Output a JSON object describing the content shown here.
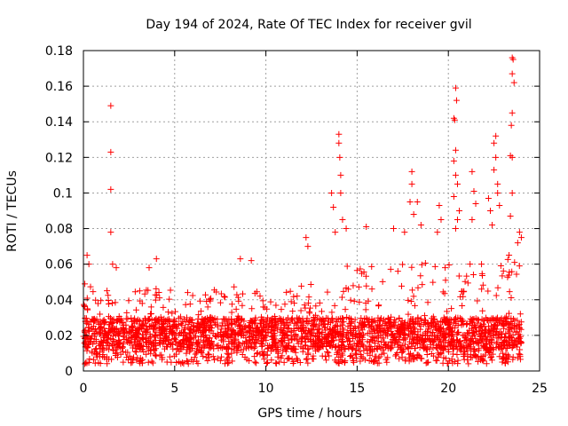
{
  "chart_data": {
    "type": "scatter",
    "title": "Day 194 of 2024, Rate Of TEC Index for receiver gvil",
    "xlabel": "GPS time / hours",
    "ylabel": "ROTI / TECUs",
    "xlim": [
      0,
      25
    ],
    "ylim": [
      0,
      0.18
    ],
    "xticks": [
      0,
      5,
      10,
      15,
      20,
      25
    ],
    "yticks": [
      0,
      0.02,
      0.04,
      0.06,
      0.08,
      0.1,
      0.12,
      0.14,
      0.16,
      0.18
    ],
    "xtick_labels": [
      "0",
      "5",
      "10",
      "15",
      "20",
      "25"
    ],
    "ytick_labels": [
      "0",
      "0.02",
      "0.04",
      "0.06",
      "0.08",
      "0.1",
      "0.12",
      "0.14",
      "0.16",
      "0.18"
    ],
    "grid": true,
    "marker": "+",
    "color": "#ff0000",
    "x_range_data": [
      0,
      24
    ],
    "baseline": {
      "typical_low": 0.012,
      "typical_high": 0.03
    },
    "band_profile": [
      {
        "x": 0,
        "upper": 0.05
      },
      {
        "x": 2,
        "upper": 0.045
      },
      {
        "x": 4,
        "upper": 0.05
      },
      {
        "x": 6,
        "upper": 0.045
      },
      {
        "x": 8,
        "upper": 0.05
      },
      {
        "x": 9,
        "upper": 0.06
      },
      {
        "x": 10,
        "upper": 0.04
      },
      {
        "x": 12,
        "upper": 0.05
      },
      {
        "x": 14,
        "upper": 0.06
      },
      {
        "x": 16,
        "upper": 0.065
      },
      {
        "x": 18,
        "upper": 0.06
      },
      {
        "x": 20,
        "upper": 0.065
      },
      {
        "x": 22,
        "upper": 0.06
      },
      {
        "x": 24,
        "upper": 0.07
      }
    ],
    "outliers": [
      {
        "x": 1.5,
        "y": 0.149
      },
      {
        "x": 1.5,
        "y": 0.123
      },
      {
        "x": 1.5,
        "y": 0.102
      },
      {
        "x": 1.5,
        "y": 0.078
      },
      {
        "x": 1.6,
        "y": 0.06
      },
      {
        "x": 0.2,
        "y": 0.065
      },
      {
        "x": 0.3,
        "y": 0.06
      },
      {
        "x": 1.8,
        "y": 0.058
      },
      {
        "x": 4.0,
        "y": 0.063
      },
      {
        "x": 3.6,
        "y": 0.058
      },
      {
        "x": 8.6,
        "y": 0.063
      },
      {
        "x": 9.2,
        "y": 0.062
      },
      {
        "x": 12.2,
        "y": 0.075
      },
      {
        "x": 12.3,
        "y": 0.07
      },
      {
        "x": 13.6,
        "y": 0.1
      },
      {
        "x": 13.7,
        "y": 0.092
      },
      {
        "x": 13.8,
        "y": 0.078
      },
      {
        "x": 14.0,
        "y": 0.133
      },
      {
        "x": 14.0,
        "y": 0.128
      },
      {
        "x": 14.05,
        "y": 0.12
      },
      {
        "x": 14.1,
        "y": 0.11
      },
      {
        "x": 14.1,
        "y": 0.1
      },
      {
        "x": 14.2,
        "y": 0.085
      },
      {
        "x": 14.4,
        "y": 0.08
      },
      {
        "x": 15.5,
        "y": 0.081
      },
      {
        "x": 17.0,
        "y": 0.08
      },
      {
        "x": 17.6,
        "y": 0.078
      },
      {
        "x": 18.0,
        "y": 0.112
      },
      {
        "x": 18.0,
        "y": 0.105
      },
      {
        "x": 17.9,
        "y": 0.095
      },
      {
        "x": 18.1,
        "y": 0.088
      },
      {
        "x": 18.3,
        "y": 0.095
      },
      {
        "x": 18.5,
        "y": 0.082
      },
      {
        "x": 19.5,
        "y": 0.093
      },
      {
        "x": 19.6,
        "y": 0.085
      },
      {
        "x": 19.4,
        "y": 0.078
      },
      {
        "x": 20.4,
        "y": 0.159
      },
      {
        "x": 20.45,
        "y": 0.152
      },
      {
        "x": 20.3,
        "y": 0.142
      },
      {
        "x": 20.35,
        "y": 0.141
      },
      {
        "x": 20.4,
        "y": 0.124
      },
      {
        "x": 20.3,
        "y": 0.118
      },
      {
        "x": 20.4,
        "y": 0.11
      },
      {
        "x": 20.5,
        "y": 0.105
      },
      {
        "x": 20.3,
        "y": 0.098
      },
      {
        "x": 20.6,
        "y": 0.09
      },
      {
        "x": 20.5,
        "y": 0.085
      },
      {
        "x": 20.4,
        "y": 0.08
      },
      {
        "x": 21.3,
        "y": 0.112
      },
      {
        "x": 21.4,
        "y": 0.101
      },
      {
        "x": 21.5,
        "y": 0.094
      },
      {
        "x": 21.3,
        "y": 0.085
      },
      {
        "x": 22.2,
        "y": 0.097
      },
      {
        "x": 22.3,
        "y": 0.09
      },
      {
        "x": 22.4,
        "y": 0.082
      },
      {
        "x": 22.5,
        "y": 0.113
      },
      {
        "x": 22.6,
        "y": 0.12
      },
      {
        "x": 22.5,
        "y": 0.128
      },
      {
        "x": 22.6,
        "y": 0.132
      },
      {
        "x": 22.7,
        "y": 0.105
      },
      {
        "x": 22.7,
        "y": 0.1
      },
      {
        "x": 22.8,
        "y": 0.093
      },
      {
        "x": 23.5,
        "y": 0.176
      },
      {
        "x": 23.55,
        "y": 0.175
      },
      {
        "x": 23.5,
        "y": 0.167
      },
      {
        "x": 23.6,
        "y": 0.162
      },
      {
        "x": 23.5,
        "y": 0.145
      },
      {
        "x": 23.45,
        "y": 0.138
      },
      {
        "x": 23.4,
        "y": 0.121
      },
      {
        "x": 23.5,
        "y": 0.12
      },
      {
        "x": 23.5,
        "y": 0.1
      },
      {
        "x": 23.4,
        "y": 0.087
      },
      {
        "x": 23.8,
        "y": 0.072
      },
      {
        "x": 23.9,
        "y": 0.078
      },
      {
        "x": 24.0,
        "y": 0.075
      }
    ]
  }
}
